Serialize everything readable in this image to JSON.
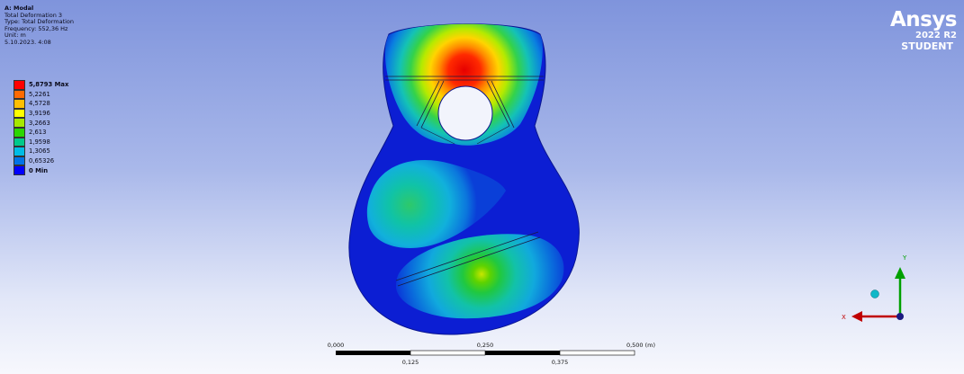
{
  "info": {
    "title": "A: Modal",
    "lines": [
      "Total Deformation 3",
      "Type: Total Deformation",
      "Frequency: 552,36 Hz",
      "Unit: m",
      "5.10.2023. 4:08"
    ]
  },
  "legend": [
    {
      "label": "5,8793 Max",
      "color": "#ff0000",
      "bold": true
    },
    {
      "label": "5,2261",
      "color": "#ff6a00",
      "bold": false
    },
    {
      "label": "4,5728",
      "color": "#ffbf00",
      "bold": false
    },
    {
      "label": "3,9196",
      "color": "#ffff00",
      "bold": false
    },
    {
      "label": "3,2663",
      "color": "#a6e800",
      "bold": false
    },
    {
      "label": "2,613",
      "color": "#2bd600",
      "bold": false
    },
    {
      "label": "1,9598",
      "color": "#00c98b",
      "bold": false
    },
    {
      "label": "1,3065",
      "color": "#00bce5",
      "bold": false
    },
    {
      "label": "0,65326",
      "color": "#0073e6",
      "bold": false
    },
    {
      "label": "0 Min",
      "color": "#0000ff",
      "bold": true
    }
  ],
  "brand": {
    "name": "Ansys",
    "version": "2022 R2",
    "edition": "STUDENT"
  },
  "scale_bar": {
    "top_labels": [
      "0,000",
      "0,250",
      "0,500 (m)"
    ],
    "bottom_labels": [
      "0,125",
      "0,375"
    ]
  },
  "triad": {
    "x_label": "X",
    "y_label": "Y",
    "x_color": "#c00000",
    "y_color": "#00a000"
  }
}
